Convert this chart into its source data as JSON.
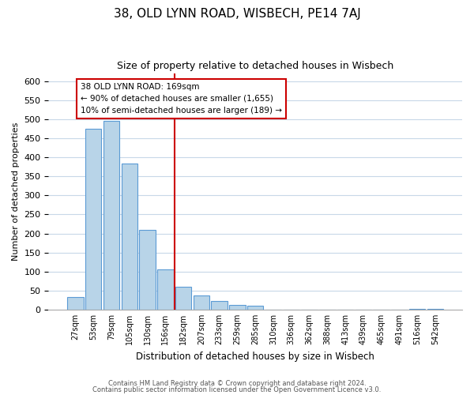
{
  "title": "38, OLD LYNN ROAD, WISBECH, PE14 7AJ",
  "subtitle": "Size of property relative to detached houses in Wisbech",
  "xlabel": "Distribution of detached houses by size in Wisbech",
  "ylabel": "Number of detached properties",
  "bar_labels": [
    "27sqm",
    "53sqm",
    "79sqm",
    "105sqm",
    "130sqm",
    "156sqm",
    "182sqm",
    "207sqm",
    "233sqm",
    "259sqm",
    "285sqm",
    "310sqm",
    "336sqm",
    "362sqm",
    "388sqm",
    "413sqm",
    "439sqm",
    "465sqm",
    "491sqm",
    "516sqm",
    "542sqm"
  ],
  "bar_values": [
    33,
    475,
    495,
    383,
    210,
    105,
    60,
    38,
    22,
    13,
    11,
    0,
    0,
    0,
    0,
    0,
    0,
    0,
    0,
    2,
    2
  ],
  "bar_color": "#b8d4e8",
  "bar_edge_color": "#5b9bd5",
  "vline_color": "#cc0000",
  "annotation_text": "38 OLD LYNN ROAD: 169sqm\n← 90% of detached houses are smaller (1,655)\n10% of semi-detached houses are larger (189) →",
  "annotation_box_color": "#ffffff",
  "annotation_box_edge": "#cc0000",
  "ylim": [
    0,
    620
  ],
  "yticks": [
    0,
    50,
    100,
    150,
    200,
    250,
    300,
    350,
    400,
    450,
    500,
    550,
    600
  ],
  "footer_line1": "Contains HM Land Registry data © Crown copyright and database right 2024.",
  "footer_line2": "Contains public sector information licensed under the Open Government Licence v3.0.",
  "bg_color": "#ffffff",
  "grid_color": "#c8d8e8"
}
